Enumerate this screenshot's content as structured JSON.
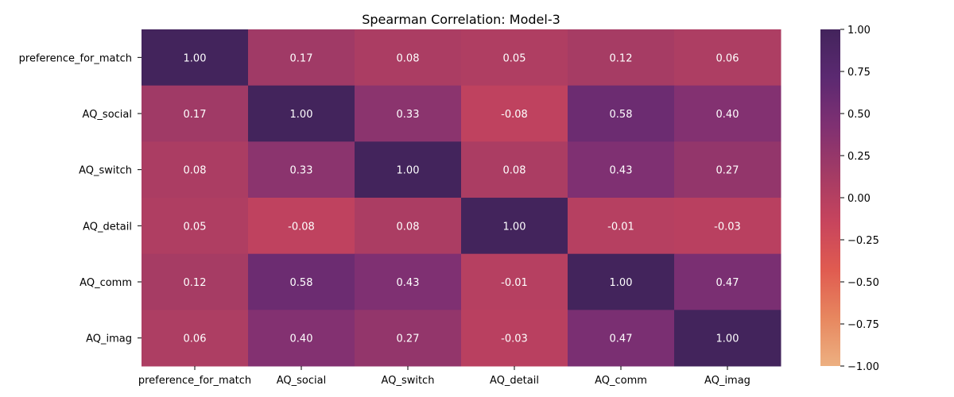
{
  "chart_data": {
    "type": "heatmap",
    "title": "Spearman Correlation: Model-3",
    "rows": [
      "preference_for_match",
      "AQ_social",
      "AQ_switch",
      "AQ_detail",
      "AQ_comm",
      "AQ_imag"
    ],
    "columns": [
      "preference_for_match",
      "AQ_social",
      "AQ_switch",
      "AQ_detail",
      "AQ_comm",
      "AQ_imag"
    ],
    "values": [
      [
        1.0,
        0.17,
        0.08,
        0.05,
        0.12,
        0.06
      ],
      [
        0.17,
        1.0,
        0.33,
        -0.08,
        0.58,
        0.4
      ],
      [
        0.08,
        0.33,
        1.0,
        0.08,
        0.43,
        0.27
      ],
      [
        0.05,
        -0.08,
        0.08,
        1.0,
        -0.01,
        -0.03
      ],
      [
        0.12,
        0.58,
        0.43,
        -0.01,
        1.0,
        0.47
      ],
      [
        0.06,
        0.4,
        0.27,
        -0.03,
        0.47,
        1.0
      ]
    ],
    "cell_labels": [
      [
        "1.00",
        "0.17",
        "0.08",
        "0.05",
        "0.12",
        "0.06"
      ],
      [
        "0.17",
        "1.00",
        "0.33",
        "-0.08",
        "0.58",
        "0.40"
      ],
      [
        "0.08",
        "0.33",
        "1.00",
        "0.08",
        "0.43",
        "0.27"
      ],
      [
        "0.05",
        "-0.08",
        "0.08",
        "1.00",
        "-0.01",
        "-0.03"
      ],
      [
        "0.12",
        "0.58",
        "0.43",
        "-0.01",
        "1.00",
        "0.47"
      ],
      [
        "0.06",
        "0.40",
        "0.27",
        "-0.03",
        "0.47",
        "1.00"
      ]
    ],
    "colorbar": {
      "range": [
        -1.0,
        1.0
      ],
      "ticks": [
        1.0,
        0.75,
        0.5,
        0.25,
        0.0,
        -0.25,
        -0.5,
        -0.75,
        -1.0
      ],
      "tick_labels": [
        "1.00",
        "0.75",
        "0.50",
        "0.25",
        "0.00",
        "−0.25",
        "−0.50",
        "−0.75",
        "−1.00"
      ],
      "colormap": "flare",
      "colors_low_to_high": [
        "#edb081",
        "#e7875f",
        "#e05b50",
        "#c7445d",
        "#a33b65",
        "#7f3072",
        "#5b2971",
        "#43245c"
      ],
      "placement": "right"
    },
    "grid": false
  }
}
